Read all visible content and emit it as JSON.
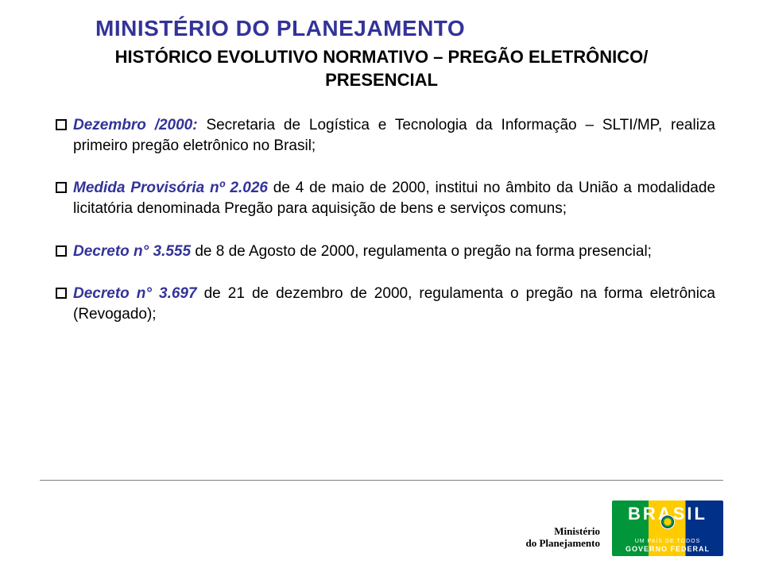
{
  "ministry_title": "MINISTÉRIO DO PLANEJAMENTO",
  "main_title": "HISTÓRICO EVOLUTIVO NORMATIVO – PREGÃO ELETRÔNICO/ PRESENCIAL",
  "bullets": [
    {
      "highlight": "Dezembro /2000:",
      "rest": " Secretaria de Logística e Tecnologia da Informação – SLTI/MP, realiza primeiro pregão eletrônico no Brasil;"
    },
    {
      "highlight": "Medida Provisória nº 2.026",
      "rest": " de 4 de maio de 2000, institui no âmbito da União a modalidade licitatória denominada Pregão para aquisição de bens e serviços comuns;"
    },
    {
      "highlight": "Decreto n° 3.555",
      "rest": " de 8 de Agosto de 2000, regulamenta o pregão na forma presencial;"
    },
    {
      "highlight": "Decreto n° 3.697",
      "rest": " de 21 de dezembro de 2000, regulamenta o pregão na forma eletrônica (Revogado);"
    }
  ],
  "footer": {
    "ministerio_line1": "Ministério",
    "ministerio_line2": "do Planejamento",
    "brasil": "BRASIL",
    "brasil_sub": "UM PAÍS DE TODOS",
    "brasil_gov": "GOVERNO FEDERAL"
  },
  "colors": {
    "title_color": "#333399",
    "text_color": "#000000",
    "bg": "#ffffff",
    "hr": "#808080",
    "brasil_green": "#009639",
    "brasil_yellow": "#ffcc00",
    "brasil_blue": "#003087"
  }
}
